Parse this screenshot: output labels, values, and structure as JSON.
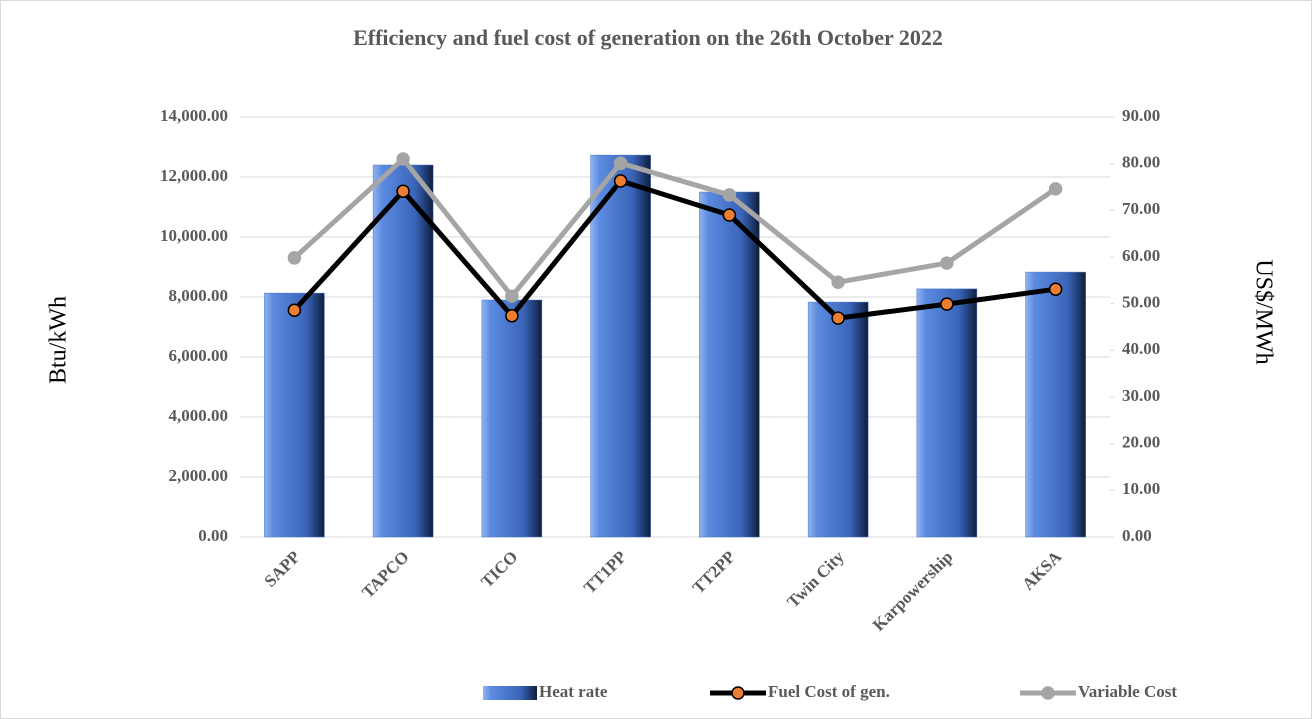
{
  "chart_data": {
    "type": "combo",
    "title": "Efficiency and fuel cost of generation on the 26th October 2022",
    "y_label": "Btu/kWh",
    "y2_label": "US$/MWh",
    "categories": [
      "SAPP",
      "TAPCO",
      "TICO",
      "TT1PP",
      "TT2PP",
      "Twin City",
      "Karpowership",
      "AKSA"
    ],
    "series": [
      {
        "name": "Heat rate",
        "type": "bar",
        "color": "#4472c4",
        "values": [
          8130,
          12400,
          7900,
          12730,
          11500,
          7830,
          8270,
          8830
        ]
      },
      {
        "name": "Fuel Cost of gen.",
        "type": "line",
        "axis": "y2",
        "color": "#000000",
        "marker_color": "#ed7d31",
        "values": [
          48.6,
          74.1,
          47.4,
          76.3,
          69.0,
          46.9,
          49.9,
          53.1
        ]
      },
      {
        "name": "Variable Cost",
        "type": "line",
        "axis": "y2",
        "color": "#a5a5a5",
        "marker_color": "#a5a5a5",
        "values": [
          59.8,
          81.0,
          51.6,
          80.1,
          73.3,
          54.6,
          58.7,
          74.6
        ]
      }
    ],
    "ylim": [
      0,
      14000
    ],
    "yticks": [
      {
        "value": 0,
        "label": "0.00"
      },
      {
        "value": 2000,
        "label": "2,000.00"
      },
      {
        "value": 4000,
        "label": "4,000.00"
      },
      {
        "value": 6000,
        "label": "6,000.00"
      },
      {
        "value": 8000,
        "label": "8,000.00"
      },
      {
        "value": 10000,
        "label": "10,000.00"
      },
      {
        "value": 12000,
        "label": "12,000.00"
      },
      {
        "value": 14000,
        "label": "14,000.00"
      }
    ],
    "y2lim": [
      0,
      90
    ],
    "y2ticks": [
      {
        "value": 0,
        "label": "0.00"
      },
      {
        "value": 10,
        "label": "10.00"
      },
      {
        "value": 20,
        "label": "20.00"
      },
      {
        "value": 30,
        "label": "30.00"
      },
      {
        "value": 40,
        "label": "40.00"
      },
      {
        "value": 50,
        "label": "50.00"
      },
      {
        "value": 60,
        "label": "60.00"
      },
      {
        "value": 70,
        "label": "70.00"
      },
      {
        "value": 80,
        "label": "80.00"
      },
      {
        "value": 90,
        "label": "90.00"
      }
    ],
    "grid": true,
    "legend": "bottom"
  }
}
